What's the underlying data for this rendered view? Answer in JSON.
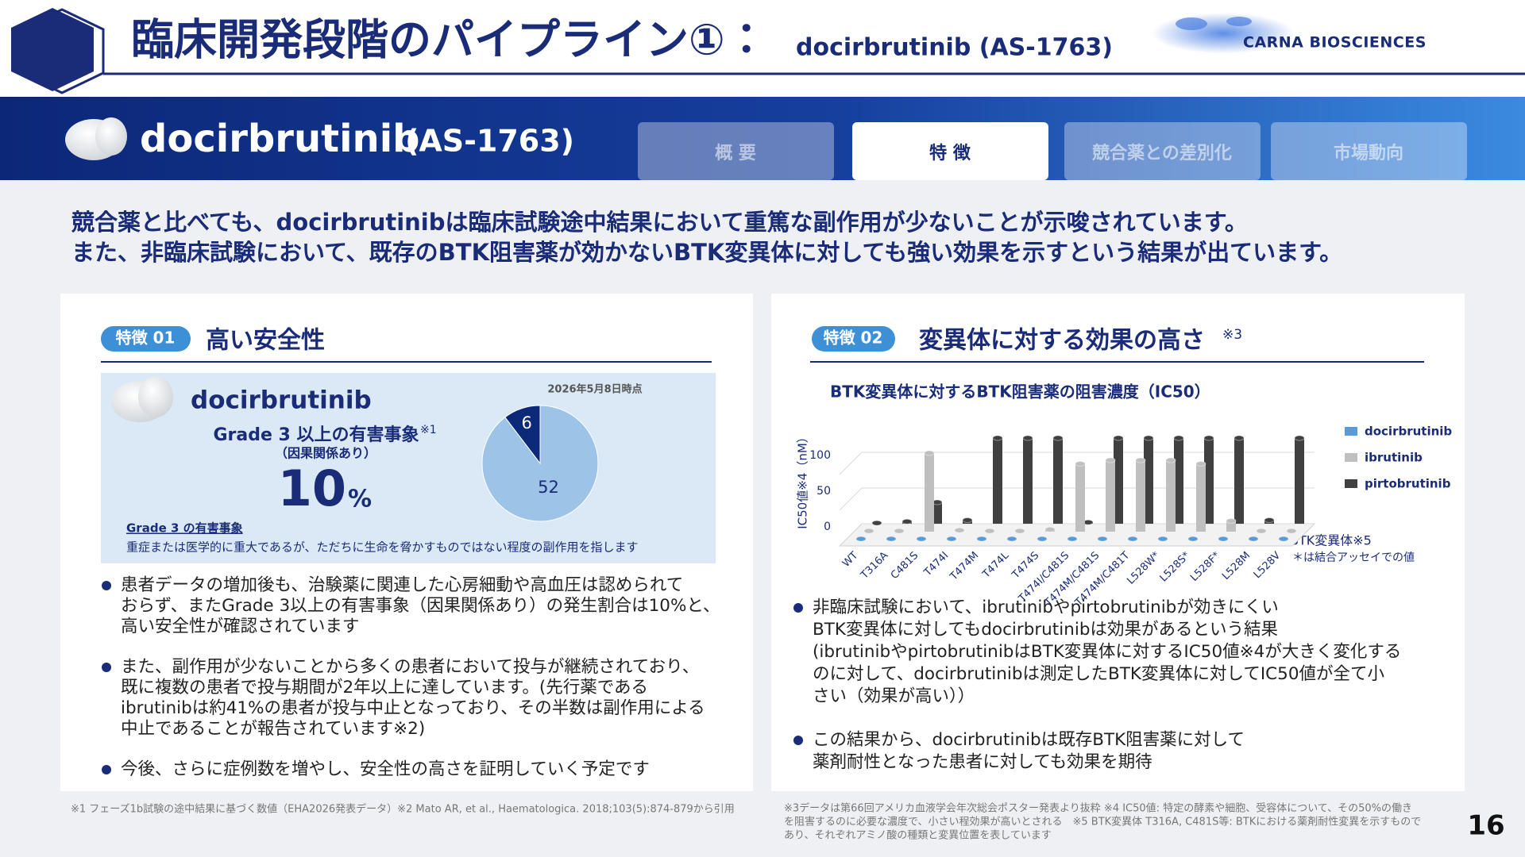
{
  "header": {
    "title": "臨床開発段階のパイプライン①：",
    "title_sub": "docirbrutinib (AS-1763)",
    "logo": "CARNA BIOSCIENCES"
  },
  "banner": {
    "name": "docirbrutinib",
    "code": "(AS-1763)"
  },
  "tabs": [
    "概 要",
    "特 徴",
    "競合薬との差別化",
    "市場動向"
  ],
  "lead": [
    "競合薬と比べても、docirbrutinibは臨床試験途中結果において重篤な副作用が少ないことが示唆されています。",
    "また、非臨床試験において、既存のBTK阻害薬が効かないBTK変異体に対しても強い効果を示すという結果が出ています。"
  ],
  "left": {
    "badge": "特徴 01",
    "heading": "高い安全性",
    "drug": "docirbrutinib",
    "date": "2026年5月8日時点",
    "metric_label": "Grade 3 以上の有害事象",
    "metric_note": "※1",
    "metric_sub": "（因果関係あり）",
    "metric_value": 10,
    "metric_unit": "%",
    "def_title": "Grade 3 の有害事象",
    "def_text": "重症または医学的に重大であるが、ただちに生命を脅かすものではない程度の副作用を指します",
    "bullets": [
      [
        "患者データの増加後も、治験薬に関連した心房細動や高血圧は認められて",
        "おらず、またGrade 3以上の有害事象（因果関係あり）の発生割合は10%と、",
        "高い安全性が確認されています"
      ],
      [
        "また、副作用が少ないことから多くの患者において投与が継続されており、",
        "既に複数の患者で投与期間が2年以上に達しています。(先行薬である",
        "ibrutinibは約41%の患者が投与中止となっており、その半数は副作用による",
        "中止であることが報告されています※2)"
      ],
      [
        "今後、さらに症例数を増やし、安全性の高さを証明していく予定です"
      ]
    ]
  },
  "right": {
    "badge": "特徴 02",
    "heading": "変異体に対する効果の高さ",
    "heading_note": "※3",
    "bullets": [
      [
        "非臨床試験において、ibrutinibやpirtobrutinibが効きにくい",
        "BTK変異体に対してもdocirbrutinibは効果があるという結果",
        "(ibrutinibやpirtobrutinibはBTK変異体に対するIC50値※4が大きく変化する",
        "のに対して、docirbrutinibは測定したBTK変異体に対してIC50値が全て小",
        "さい（効果が高い））"
      ],
      [
        "この結果から、docirbrutinibは既存BTK阻害薬に対して",
        "薬剤耐性となった患者に対しても効果を期待"
      ]
    ]
  },
  "chart_data": [
    {
      "type": "pie",
      "values": [
        6,
        52
      ],
      "colors": [
        "#0d2a7a",
        "#9dc3e6"
      ]
    },
    {
      "type": "bar3d",
      "title": "BTK変異体に対するBTK阻害薬の阻害濃度（IC50）",
      "y_label": "IC50値※4（nM）",
      "x_label": "BTK変異体※5",
      "note": "＊は結合アッセイでの値",
      "categories": [
        "WT",
        "T316A",
        "C481S",
        "T474I",
        "T474M",
        "T474L",
        "T474S",
        "T474I/C481S",
        "T474M/C481S",
        "T474M/C481T",
        "L528W*",
        "L528S*",
        "L528F*",
        "L528M",
        "L528V"
      ],
      "series": [
        {
          "name": "docirbrutinib",
          "color": "#5b9bd5",
          "values": [
            1,
            1,
            1,
            1,
            1,
            1,
            1,
            1,
            1,
            1,
            1,
            1,
            1,
            1,
            1
          ]
        },
        {
          "name": "ibrutinib",
          "color": "#bfbfbf",
          "values": [
            1,
            1,
            110,
            2,
            1,
            1,
            3,
            95,
            100,
            100,
            100,
            95,
            15,
            1,
            1
          ]
        },
        {
          "name": "pirtobrutinib",
          "color": "#404040",
          "values": [
            1,
            3,
            30,
            5,
            120,
            120,
            120,
            2,
            120,
            120,
            120,
            120,
            120,
            5,
            120
          ]
        }
      ],
      "ylim": [
        0,
        100
      ],
      "yticks": [
        0,
        50,
        100
      ]
    }
  ],
  "footnotes": {
    "left": [
      "※1 フェーズ1b試験の途中結果に基づく数値（EHA2026発表データ）※2 Mato AR, et al., Haematologica. 2018;103(5):874-879から引用"
    ],
    "right": [
      "※3データは第66回アメリカ血液学会年次総会ポスター発表より抜粋 ※4 IC50値: 特定の酵素や細胞、受容体について、その50%の働き",
      "を阻害するのに必要な濃度で、小さい程効果が高いとされる　※5 BTK変異体 T316A, C481S等: BTKにおける薬剤耐性変異を示すもので",
      "あり、それぞれアミノ酸の種類と変異位置を表しています"
    ]
  },
  "page_number": 16
}
